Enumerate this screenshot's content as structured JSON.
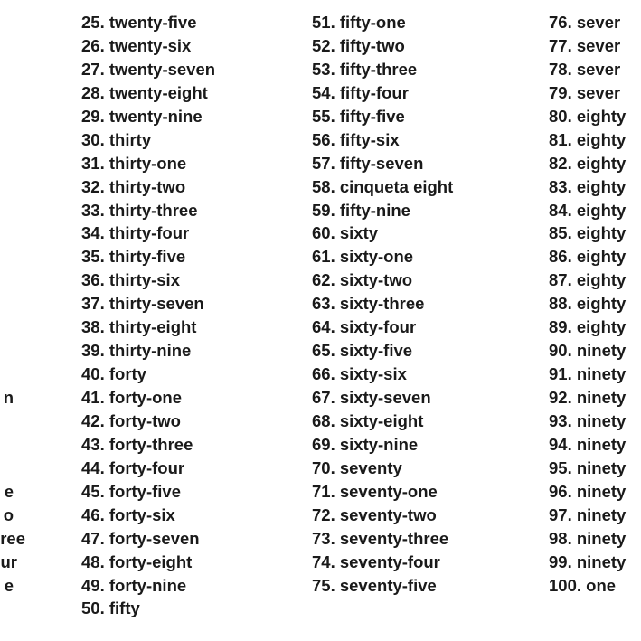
{
  "left_fragments": [
    {
      "row": 16,
      "text": "n"
    },
    {
      "row": 20,
      "text": "e"
    },
    {
      "row": 21,
      "text": "o"
    },
    {
      "row": 22,
      "text": "ree"
    },
    {
      "row": 23,
      "text": "ur"
    },
    {
      "row": 24,
      "text": "e"
    }
  ],
  "column2": [
    "25. twenty-five",
    "26. twenty-six",
    "27. twenty-seven",
    "28. twenty-eight",
    "29. twenty-nine",
    "30. thirty",
    "31. thirty-one",
    "32. thirty-two",
    "33. thirty-three",
    "34. thirty-four",
    "35. thirty-five",
    "36. thirty-six",
    "37. thirty-seven",
    "38. thirty-eight",
    "39. thirty-nine",
    "40. forty",
    "41. forty-one",
    "42. forty-two",
    "43. forty-three",
    "44. forty-four",
    "45. forty-five",
    "46. forty-six",
    "47. forty-seven",
    "48. forty-eight",
    "49. forty-nine",
    "50. fifty"
  ],
  "column3": [
    "51. fifty-one",
    "52. fifty-two",
    "53. fifty-three",
    "54. fifty-four",
    "55. fifty-five",
    "56. fifty-six",
    "57. fifty-seven",
    "58. cinqueta eight",
    "59. fifty-nine",
    "60. sixty",
    "61. sixty-one",
    "62. sixty-two",
    "63. sixty-three",
    "64. sixty-four",
    "65. sixty-five",
    "66. sixty-six",
    "67. sixty-seven",
    "68. sixty-eight",
    "69. sixty-nine",
    "70. seventy",
    "71. seventy-one",
    "72. seventy-two",
    "73. seventy-three",
    "74. seventy-four",
    "75. seventy-five"
  ],
  "column4": [
    "76. sever",
    "77. sever",
    "78. sever",
    "79. sever",
    "80. eighty",
    "81. eighty",
    "82. eighty",
    "83. eighty",
    "84. eighty",
    "85. eighty",
    "86. eighty",
    "87. eighty",
    "88. eighty",
    "89. eighty",
    "90. ninety",
    "91. ninety",
    "92. ninety",
    "93. ninety",
    "94. ninety",
    "95. ninety",
    "96. ninety",
    "97. ninety",
    "98. ninety",
    "99. ninety",
    "100. one"
  ]
}
